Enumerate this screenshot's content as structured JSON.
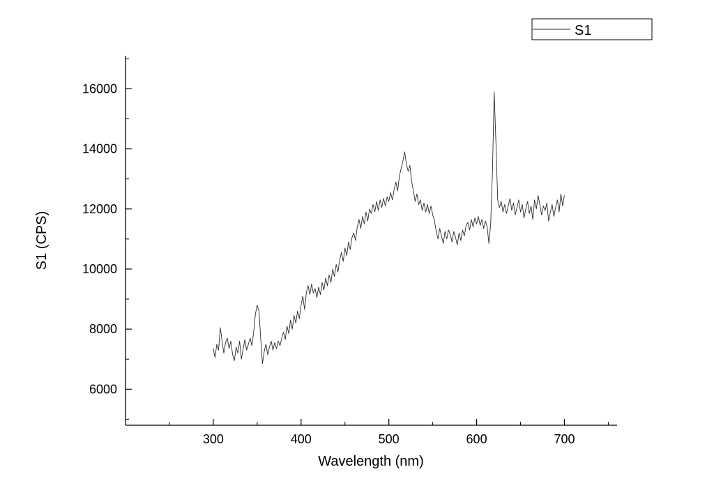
{
  "page": {
    "background": "#ffffff"
  },
  "chart_data": {
    "type": "line",
    "title": "",
    "xlabel": "Wavelength (nm)",
    "ylabel": "S1 (CPS)",
    "grid": false,
    "legend_position": "top-right",
    "line_color": "#2a2a2a",
    "x_axis": {
      "min": 200,
      "max": 760,
      "ticks": [
        300,
        400,
        500,
        600,
        700
      ],
      "minor_step": 50
    },
    "y_axis": {
      "min": 4800,
      "max": 17100,
      "ticks": [
        6000,
        8000,
        10000,
        12000,
        14000,
        16000
      ],
      "minor_step": 1000
    },
    "series": [
      {
        "name": "S1",
        "color": "#2a2a2a",
        "x_start": 300,
        "x_step": 2,
        "y": [
          7350,
          7050,
          7500,
          7300,
          8050,
          7600,
          7200,
          7550,
          7700,
          7350,
          7600,
          7150,
          6950,
          7400,
          7200,
          7600,
          7000,
          7350,
          7650,
          7300,
          7500,
          7700,
          7450,
          7900,
          8500,
          8800,
          8600,
          7700,
          6850,
          7250,
          7500,
          7150,
          7400,
          7600,
          7300,
          7550,
          7350,
          7600,
          7450,
          7700,
          7900,
          7650,
          8100,
          7850,
          8300,
          8000,
          8450,
          8200,
          8600,
          8350,
          8800,
          9100,
          8650,
          9200,
          9450,
          9150,
          9500,
          9200,
          9350,
          9050,
          9400,
          9150,
          9550,
          9300,
          9700,
          9450,
          9800,
          9550,
          10000,
          9750,
          10150,
          9900,
          10300,
          10550,
          10250,
          10700,
          10450,
          10900,
          10650,
          11050,
          11200,
          10950,
          11400,
          11650,
          11350,
          11750,
          11500,
          11900,
          11600,
          12000,
          11850,
          12150,
          11900,
          12250,
          11950,
          12300,
          12050,
          12350,
          12100,
          12400,
          12250,
          12550,
          12300,
          12650,
          12900,
          12600,
          13100,
          13350,
          13600,
          13900,
          13500,
          13250,
          13450,
          12900,
          12600,
          12250,
          12500,
          12150,
          12300,
          11950,
          12200,
          11900,
          12150,
          11850,
          12100,
          11800,
          11600,
          11250,
          11000,
          11350,
          11100,
          10850,
          11250,
          11000,
          11300,
          11150,
          10900,
          11250,
          11050,
          10800,
          11200,
          10950,
          11300,
          11100,
          11450,
          11550,
          11300,
          11650,
          11400,
          11700,
          11500,
          11750,
          11450,
          11650,
          11350,
          11600,
          11400,
          10850,
          11500,
          13200,
          15900,
          14200,
          12300,
          12050,
          12250,
          11900,
          12150,
          11850,
          12100,
          12350,
          11950,
          12200,
          11800,
          12050,
          12300,
          11900,
          12150,
          11700,
          12000,
          12250,
          11850,
          12100,
          11650,
          12300,
          12000,
          12450,
          12150,
          11800,
          12100,
          11950,
          12200,
          11600,
          11900,
          12150,
          11750,
          12050,
          12300,
          11900,
          12500,
          12100,
          12450
        ]
      }
    ]
  }
}
